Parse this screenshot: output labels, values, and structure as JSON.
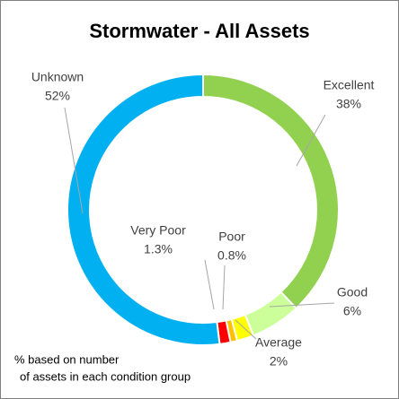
{
  "chart_data": {
    "type": "pie",
    "title": "Stormwater - All Assets",
    "categories": [
      "Excellent",
      "Good",
      "Average",
      "Poor",
      "Very Poor",
      "Unknown"
    ],
    "values": [
      38,
      6,
      2,
      0.8,
      1.3,
      52
    ],
    "value_labels": [
      "38%",
      "6%",
      "2%",
      "0.8%",
      "1.3%",
      "52%"
    ],
    "colors": [
      "#92d050",
      "#ccff99",
      "#ffff00",
      "#ffc000",
      "#ff0000",
      "#00b0f0"
    ],
    "annotations": [
      "% based on number",
      "of assets in each condition group"
    ]
  }
}
